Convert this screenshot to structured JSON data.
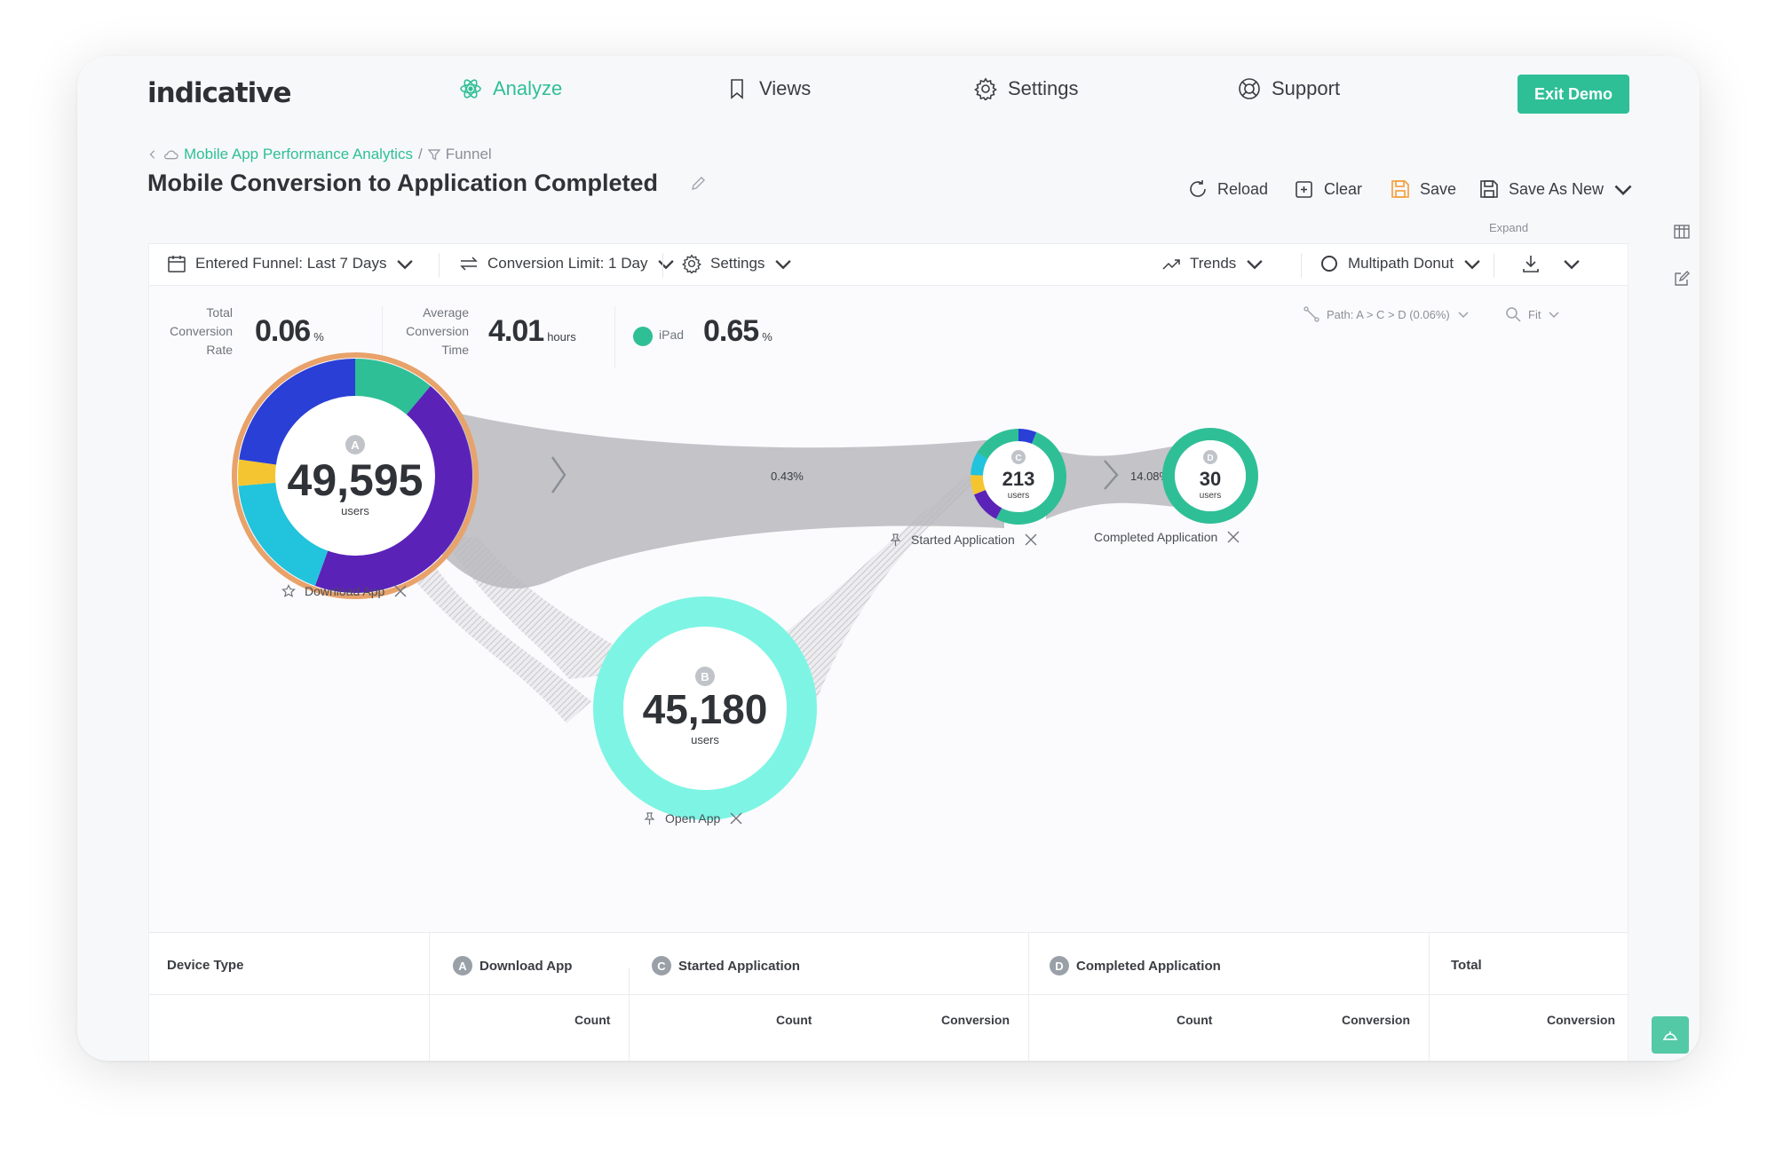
{
  "app": {
    "logo": "indicative"
  },
  "nav": {
    "analyze": "Analyze",
    "views": "Views",
    "settings": "Settings",
    "support": "Support",
    "exit_demo": "Exit Demo"
  },
  "breadcrumb": {
    "project": "Mobile App Performance Analytics",
    "separator": "/",
    "section": "Funnel"
  },
  "page_title": "Mobile Conversion to Application Completed",
  "actions": {
    "reload": "Reload",
    "clear": "Clear",
    "save": "Save",
    "save_as_new": "Save As New"
  },
  "toolbar": {
    "entered_funnel": "Entered Funnel: Last 7 Days",
    "conversion_limit": "Conversion Limit: 1 Day",
    "settings": "Settings",
    "trends": "Trends",
    "multipath": "Multipath Donut",
    "expand": "Expand"
  },
  "metrics": {
    "total_label": [
      "Total",
      "Conversion",
      "Rate"
    ],
    "total_value": "0.06",
    "total_unit": "%",
    "avg_label": [
      "Average",
      "Conversion",
      "Time"
    ],
    "avg_value": "4.01",
    "avg_unit": "hours",
    "device_label": "iPad",
    "device_value": "0.65",
    "device_unit": "%"
  },
  "path_control": {
    "path": "Path:  A > C > D (0.06%)",
    "zoom": "Fit"
  },
  "funnel": {
    "nodes": [
      {
        "id": "A",
        "count": "49,595",
        "unit": "users",
        "label": "Download App"
      },
      {
        "id": "B",
        "count": "45,180",
        "unit": "users",
        "label": "Open App"
      },
      {
        "id": "C",
        "count": "213",
        "unit": "users",
        "label": "Started Application"
      },
      {
        "id": "D",
        "count": "30",
        "unit": "users",
        "label": "Completed Application"
      }
    ],
    "links": [
      {
        "from": "A",
        "to": "C",
        "rate": "0.43%"
      },
      {
        "from": "C",
        "to": "D",
        "rate": "14.08%"
      }
    ]
  },
  "colors": {
    "accent": "#2fbf97",
    "teal_light": "#7ef5e4",
    "purple": "#5b22b8",
    "blue": "#2a3fd6",
    "cyan": "#22c3dc",
    "yellow": "#f5c531",
    "orange_ring": "#e8a26a"
  },
  "table": {
    "device_type": "Device Type",
    "col_a": "Download App",
    "col_c": "Started Application",
    "col_d": "Completed Application",
    "col_total": "Total",
    "count": "Count",
    "conversion": "Conversion"
  }
}
